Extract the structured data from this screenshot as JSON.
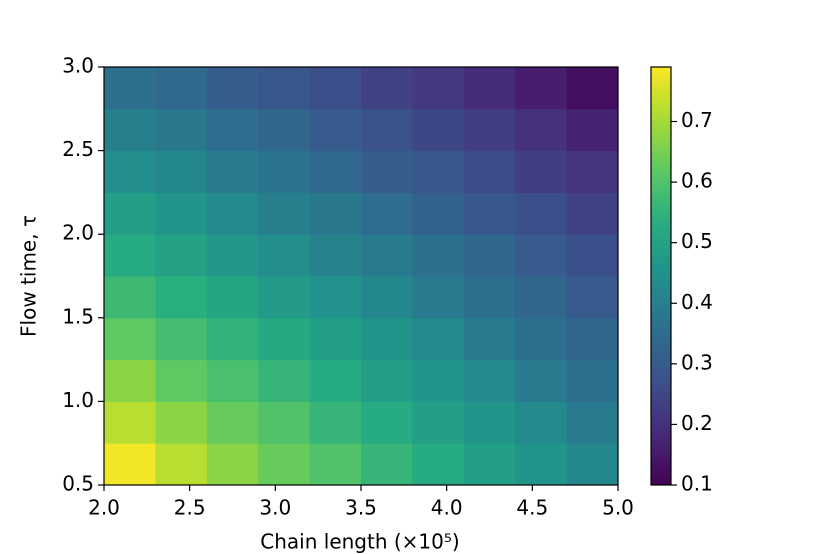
{
  "chart_data": {
    "type": "heatmap",
    "colormap": "viridis",
    "x_label": "Chain length (×10⁵)",
    "y_label": "Flow time, τ",
    "xlim": [
      2.0,
      5.0
    ],
    "ylim": [
      0.5,
      3.0
    ],
    "xticks": [
      {
        "value": 2,
        "label": "2.0"
      },
      {
        "value": 2.5,
        "label": "2.5"
      },
      {
        "value": 3,
        "label": "3.0"
      },
      {
        "value": 3.5,
        "label": "3.5"
      },
      {
        "value": 4,
        "label": "4.0"
      },
      {
        "value": 4.5,
        "label": "4.5"
      },
      {
        "value": 5,
        "label": "5.0"
      }
    ],
    "yticks": [
      {
        "value": 0.5,
        "label": "0.5"
      },
      {
        "value": 1,
        "label": "1.0"
      },
      {
        "value": 1.5,
        "label": "1.5"
      },
      {
        "value": 2,
        "label": "2.0"
      },
      {
        "value": 2.5,
        "label": "2.5"
      },
      {
        "value": 3,
        "label": "3.0"
      }
    ],
    "clim": [
      0.1,
      0.79
    ],
    "cticks": [
      0.1,
      0.2,
      0.3,
      0.4,
      0.5,
      0.6,
      0.7
    ],
    "z": [
      [
        0.78,
        0.72,
        0.67,
        0.63,
        0.6,
        0.56,
        0.53,
        0.49,
        0.46,
        0.42
      ],
      [
        0.72,
        0.67,
        0.63,
        0.6,
        0.56,
        0.53,
        0.49,
        0.46,
        0.43,
        0.39
      ],
      [
        0.67,
        0.62,
        0.59,
        0.56,
        0.53,
        0.49,
        0.46,
        0.43,
        0.39,
        0.36
      ],
      [
        0.62,
        0.58,
        0.55,
        0.52,
        0.49,
        0.46,
        0.43,
        0.39,
        0.36,
        0.33
      ],
      [
        0.57,
        0.54,
        0.51,
        0.48,
        0.45,
        0.42,
        0.39,
        0.36,
        0.33,
        0.3
      ],
      [
        0.53,
        0.5,
        0.47,
        0.44,
        0.41,
        0.39,
        0.36,
        0.33,
        0.3,
        0.27
      ],
      [
        0.49,
        0.46,
        0.43,
        0.4,
        0.38,
        0.35,
        0.32,
        0.29,
        0.27,
        0.24
      ],
      [
        0.44,
        0.42,
        0.39,
        0.37,
        0.34,
        0.31,
        0.29,
        0.26,
        0.23,
        0.21
      ],
      [
        0.4,
        0.38,
        0.35,
        0.33,
        0.3,
        0.28,
        0.25,
        0.23,
        0.2,
        0.17
      ],
      [
        0.36,
        0.34,
        0.31,
        0.29,
        0.27,
        0.24,
        0.22,
        0.19,
        0.16,
        0.13
      ]
    ]
  }
}
